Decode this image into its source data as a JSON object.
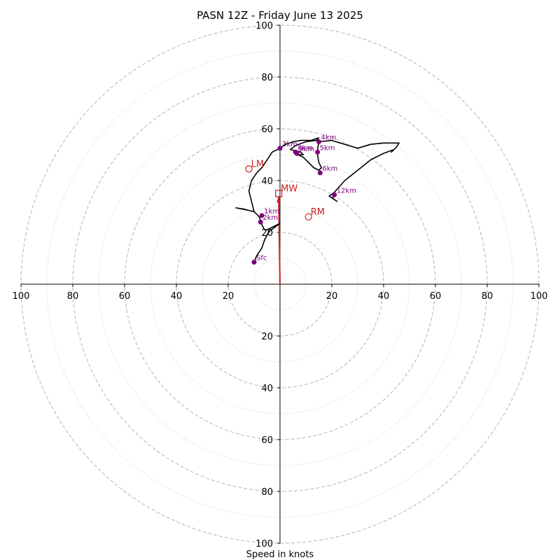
{
  "colors": {
    "trace": "#000000",
    "height_marker": "#800080",
    "motion": "#cc1f1f",
    "grid": "#b4b4b4"
  },
  "chart_data": {
    "type": "hodograph",
    "title": "PASN 12Z - Friday June 13 2025",
    "xlabel": "Speed in knots",
    "ylabel": "",
    "xlim": [
      -100,
      100
    ],
    "ylim": [
      -100,
      100
    ],
    "tick_labels": [
      "20",
      "40",
      "60",
      "80",
      "100"
    ],
    "rings_major": [
      20,
      40,
      60,
      80,
      100
    ],
    "rings_minor": [
      10,
      30,
      50,
      70,
      90
    ],
    "trace": [
      [
        -10,
        8.5
      ],
      [
        -9,
        11
      ],
      [
        -7,
        14
      ],
      [
        -6,
        17
      ],
      [
        -5,
        19
      ],
      [
        -4,
        20.5
      ],
      [
        -2,
        22
      ],
      [
        0,
        23.5
      ],
      [
        -3,
        22
      ],
      [
        -5,
        21
      ],
      [
        -6,
        21
      ],
      [
        -7,
        23
      ],
      [
        -8,
        26
      ],
      [
        -9,
        27
      ],
      [
        -10,
        28
      ],
      [
        -12,
        28.5
      ],
      [
        -14,
        29
      ],
      [
        -17,
        29.5
      ],
      [
        -12,
        28.5
      ],
      [
        -10,
        28
      ],
      [
        -11,
        32
      ],
      [
        -12,
        36
      ],
      [
        -11,
        40
      ],
      [
        -9,
        43
      ],
      [
        -7,
        45
      ],
      [
        -5,
        48
      ],
      [
        -3,
        51
      ],
      [
        0,
        52.5
      ],
      [
        2,
        54
      ],
      [
        5,
        55
      ],
      [
        8,
        55.5
      ],
      [
        12,
        55.5
      ],
      [
        15,
        56.5
      ],
      [
        14,
        55.5
      ],
      [
        10,
        55
      ],
      [
        6,
        53.5
      ],
      [
        4,
        52
      ],
      [
        6,
        51.5
      ],
      [
        8,
        51
      ],
      [
        9,
        50
      ],
      [
        7,
        50
      ],
      [
        9,
        49
      ],
      [
        11,
        47
      ],
      [
        13,
        45
      ],
      [
        15,
        44
      ],
      [
        16,
        45
      ],
      [
        15.5,
        46
      ],
      [
        15,
        47
      ],
      [
        14.5,
        50
      ],
      [
        14.5,
        52
      ],
      [
        15,
        55
      ],
      [
        20,
        55.5
      ],
      [
        25,
        54
      ],
      [
        30,
        52.5
      ],
      [
        35,
        54
      ],
      [
        40,
        54.5
      ],
      [
        46,
        54.5
      ],
      [
        45,
        53
      ],
      [
        43,
        51
      ],
      [
        44,
        52
      ],
      [
        40,
        50.5
      ],
      [
        35,
        48
      ],
      [
        30,
        44
      ],
      [
        25,
        40
      ],
      [
        21,
        35.5
      ],
      [
        19,
        34
      ],
      [
        22,
        32
      ],
      [
        20.5,
        33
      ],
      [
        20.5,
        34
      ]
    ],
    "height_markers": [
      {
        "label": "Sfc",
        "u": -10,
        "v": 8.5
      },
      {
        "label": "1km",
        "u": -7,
        "v": 26.5
      },
      {
        "label": "2km",
        "u": -7.5,
        "v": 24
      },
      {
        "label": "3km",
        "u": 0,
        "v": 52.5
      },
      {
        "label": "4km",
        "u": 15,
        "v": 55
      },
      {
        "label": "5km",
        "u": 14.5,
        "v": 51
      },
      {
        "label": "6km",
        "u": 15.5,
        "v": 43
      },
      {
        "label": "8km",
        "u": 6,
        "v": 51
      },
      {
        "label": "9km",
        "u": 6.5,
        "v": 50.5
      },
      {
        "label": "12km",
        "u": 21,
        "v": 34.5
      }
    ],
    "motion_markers": [
      {
        "label": "LM",
        "u": -12,
        "v": 44.5,
        "shape": "circle"
      },
      {
        "label": "RM",
        "u": 11,
        "v": 26,
        "shape": "circle"
      },
      {
        "label": "MW",
        "u": -0.5,
        "v": 35,
        "shape": "square"
      }
    ],
    "shear_vector": {
      "from": [
        0,
        0
      ],
      "to": [
        -0.5,
        34
      ]
    }
  }
}
